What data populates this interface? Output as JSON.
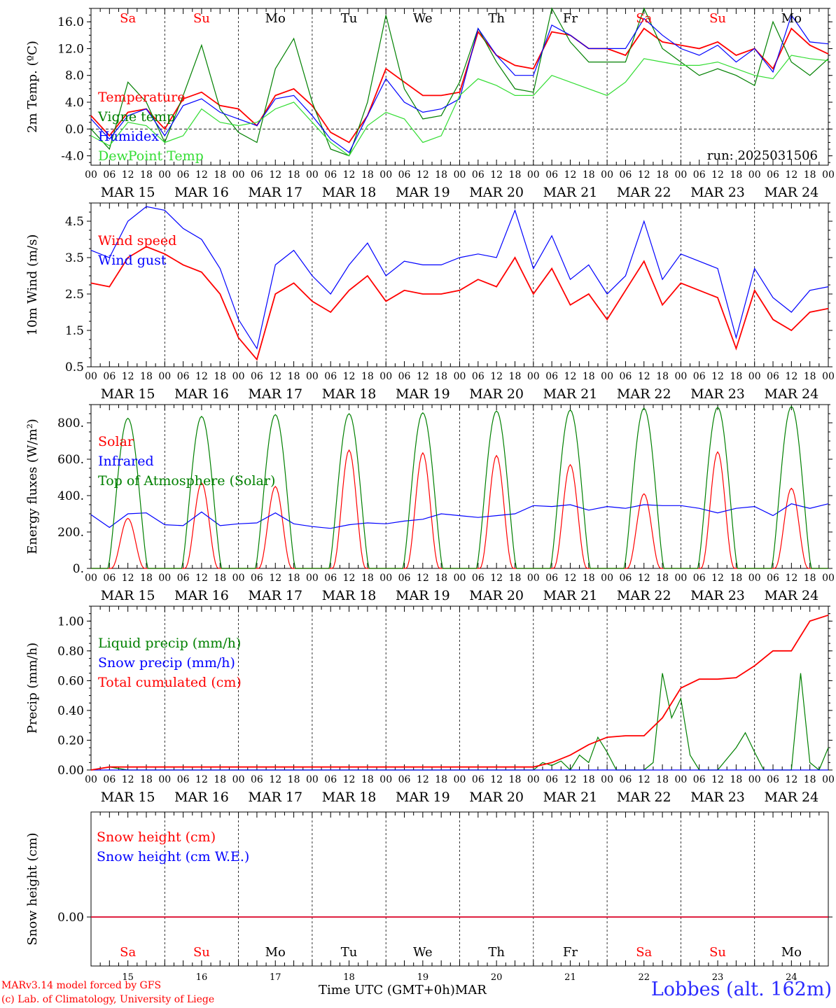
{
  "colors": {
    "temperature": "#ff0000",
    "vigne": "#008000",
    "humidex": "#0000ff",
    "dewpoint": "#33dd33",
    "toa": "#008000",
    "saturday": "#ff0000",
    "sunday": "#ff0000",
    "weekday": "#000000"
  },
  "footer": {
    "line1": "MARv3.14 model forced by GFS",
    "line2": "(c) Lab. of Climatology, University of Liege",
    "axis_title": "Time UTC (GMT+0h)",
    "month": "MAR",
    "station": "Lobbes (alt. 162m)"
  },
  "chart_data": [
    {
      "type": "line",
      "ylabel": "2m Temp. (ºC)",
      "ylim": [
        -5.4,
        18
      ],
      "yticks": [
        "-4.0",
        "0.0",
        "4.0",
        "8.0",
        "12.0",
        "16.0"
      ],
      "ytick_values": [
        -4,
        0,
        4,
        8,
        12,
        16
      ],
      "hour_ticks": [
        "00",
        "06",
        "12",
        "18"
      ],
      "date_labels": [
        "MAR 15",
        "MAR 16",
        "MAR 17",
        "MAR 18",
        "MAR 19",
        "MAR 20",
        "MAR 21",
        "MAR 22",
        "MAR 23",
        "MAR 24"
      ],
      "day_labels": [
        "Sa",
        "Su",
        "Mo",
        "Tu",
        "We",
        "Th",
        "Fr",
        "Sa",
        "Su",
        "Mo"
      ],
      "annotation": "run: 2025031506",
      "zero_line": true,
      "x": [
        0,
        6,
        12,
        18,
        24,
        30,
        36,
        42,
        48,
        54,
        60,
        66,
        72,
        78,
        84,
        90,
        96,
        102,
        108,
        114,
        120,
        126,
        132,
        138,
        144,
        150,
        156,
        162,
        168,
        174,
        180,
        186,
        192,
        198,
        204,
        210,
        216,
        222,
        228,
        234,
        240
      ],
      "series": [
        {
          "name": "Temperature",
          "color": "#ff0000",
          "values": [
            2,
            -1,
            2.5,
            3,
            0,
            4.5,
            5.5,
            3.5,
            3,
            0.5,
            5,
            6,
            3.5,
            -0.5,
            -2,
            2,
            9,
            7,
            5,
            5,
            5.5,
            14.5,
            11,
            9.5,
            9,
            14.5,
            14,
            12,
            12,
            11,
            15,
            13,
            12.5,
            12,
            13,
            11,
            12,
            9,
            15,
            12.5,
            11.2
          ]
        },
        {
          "name": "Vigne temp",
          "color": "#008000",
          "values": [
            0,
            -3,
            7,
            4,
            -2,
            5,
            12.5,
            3,
            -0.5,
            -2,
            9,
            13.5,
            4,
            -3,
            -4,
            4,
            17,
            6,
            1.5,
            2,
            7,
            15,
            10,
            6,
            5.5,
            18,
            13,
            10,
            10,
            10,
            18,
            12,
            10,
            8,
            9,
            8,
            6.5,
            16,
            10,
            8,
            10.5
          ]
        },
        {
          "name": "Humidex",
          "color": "#0000ff",
          "values": [
            1.5,
            -1.5,
            2,
            3,
            -1,
            3.5,
            4.5,
            2.5,
            1.5,
            0.5,
            4.5,
            5,
            2,
            -1.5,
            -3.5,
            2,
            7.5,
            4,
            2.5,
            3,
            4.5,
            15,
            11,
            8,
            8,
            15.5,
            14,
            12,
            12,
            12,
            16.5,
            14,
            12,
            11,
            12.5,
            10,
            12,
            8.5,
            17,
            13,
            12.7
          ]
        },
        {
          "name": "DewPoint Temp",
          "color": "#33dd33",
          "values": [
            -1,
            -2.5,
            1,
            0.5,
            -2,
            -1,
            3,
            1,
            0.5,
            1,
            3,
            4,
            1,
            -2,
            -4,
            0.5,
            2.5,
            1.5,
            -2,
            -1,
            5,
            7.5,
            6.5,
            5,
            5,
            8,
            7,
            6,
            5,
            7,
            10.5,
            10,
            9.5,
            9.5,
            10,
            9,
            8,
            7.5,
            11,
            10.5,
            10.2
          ]
        }
      ],
      "legend": [
        "Temperature",
        "Vigne temp",
        "Humidex",
        "DewPoint Temp"
      ],
      "legend_position": "left"
    },
    {
      "type": "line",
      "ylabel": "10m Wind (m/s)",
      "ylim": [
        0.5,
        5.0
      ],
      "yticks": [
        "0.5",
        "1.5",
        "2.5",
        "3.5",
        "4.5"
      ],
      "ytick_values": [
        0.5,
        1.5,
        2.5,
        3.5,
        4.5
      ],
      "hour_ticks": [
        "00",
        "06",
        "12",
        "18"
      ],
      "date_labels": [
        "MAR 15",
        "MAR 16",
        "MAR 17",
        "MAR 18",
        "MAR 19",
        "MAR 20",
        "MAR 21",
        "MAR 22",
        "MAR 23",
        "MAR 24"
      ],
      "x": [
        0,
        6,
        12,
        18,
        24,
        30,
        36,
        42,
        48,
        54,
        60,
        66,
        72,
        78,
        84,
        90,
        96,
        102,
        108,
        114,
        120,
        126,
        132,
        138,
        144,
        150,
        156,
        162,
        168,
        174,
        180,
        186,
        192,
        198,
        204,
        210,
        216,
        222,
        228,
        234,
        240
      ],
      "series": [
        {
          "name": "Wind speed",
          "color": "#ff0000",
          "values": [
            2.8,
            2.7,
            3.5,
            3.8,
            3.6,
            3.3,
            3.1,
            2.5,
            1.3,
            0.7,
            2.5,
            2.8,
            2.3,
            2.0,
            2.6,
            3.0,
            2.3,
            2.6,
            2.5,
            2.5,
            2.6,
            2.9,
            2.7,
            3.5,
            2.5,
            3.2,
            2.2,
            2.5,
            1.8,
            2.6,
            3.4,
            2.2,
            2.8,
            2.6,
            2.4,
            1.0,
            2.6,
            1.8,
            1.5,
            2.0,
            2.1
          ]
        },
        {
          "name": "Wind gust",
          "color": "#0000ff",
          "values": [
            3.7,
            3.5,
            4.5,
            4.9,
            4.8,
            4.3,
            4.0,
            3.2,
            1.8,
            1.0,
            3.3,
            3.7,
            3.0,
            2.5,
            3.3,
            3.9,
            3.0,
            3.4,
            3.3,
            3.3,
            3.5,
            3.6,
            3.5,
            4.8,
            3.2,
            4.1,
            2.9,
            3.3,
            2.5,
            3.0,
            4.5,
            2.9,
            3.6,
            3.4,
            3.2,
            1.3,
            3.2,
            2.4,
            2.0,
            2.6,
            2.7
          ]
        }
      ],
      "legend": [
        "Wind speed",
        "Wind gust"
      ],
      "legend_position": "left"
    },
    {
      "type": "line",
      "ylabel": "Energy fluxes (W/m²)",
      "ylim": [
        0,
        900
      ],
      "yticks": [
        "0.",
        "200.",
        "400.",
        "600.",
        "800."
      ],
      "ytick_values": [
        0,
        200,
        400,
        600,
        800
      ],
      "hour_ticks": [
        "00",
        "06",
        "12",
        "18"
      ],
      "date_labels": [
        "MAR 15",
        "MAR 16",
        "MAR 17",
        "MAR 18",
        "MAR 19",
        "MAR 20",
        "MAR 21",
        "MAR 22",
        "MAR 23",
        "MAR 24"
      ],
      "series": [
        {
          "name": "Solar",
          "color": "#ff0000",
          "peaks": [
            275,
            470,
            450,
            650,
            635,
            620,
            570,
            410,
            640,
            440
          ]
        },
        {
          "name": "Infrared",
          "color": "#0000ff",
          "x": [
            0,
            6,
            12,
            18,
            24,
            30,
            36,
            42,
            48,
            54,
            60,
            66,
            72,
            78,
            84,
            90,
            96,
            102,
            108,
            114,
            120,
            126,
            132,
            138,
            144,
            150,
            156,
            162,
            168,
            174,
            180,
            186,
            192,
            198,
            204,
            210,
            216,
            222,
            228,
            234,
            240
          ],
          "values": [
            295,
            225,
            300,
            305,
            240,
            235,
            310,
            235,
            245,
            250,
            305,
            245,
            230,
            220,
            240,
            250,
            245,
            260,
            270,
            300,
            290,
            280,
            290,
            300,
            345,
            340,
            350,
            320,
            340,
            330,
            350,
            345,
            345,
            330,
            305,
            330,
            340,
            290,
            355,
            330,
            355
          ]
        },
        {
          "name": "Top of Atmosphere (Solar)",
          "color": "#008000",
          "peaks": [
            825,
            835,
            845,
            850,
            855,
            865,
            870,
            880,
            885,
            890
          ]
        }
      ],
      "legend": [
        "Solar",
        "Infrared",
        "Top of Atmosphere (Solar)"
      ],
      "legend_position": "left"
    },
    {
      "type": "line",
      "ylabel": "Precip (mm/h)",
      "ylim": [
        0,
        1.1
      ],
      "yticks": [
        "0.00",
        "0.20",
        "0.40",
        "0.60",
        "0.80",
        "1.00"
      ],
      "ytick_values": [
        0,
        0.2,
        0.4,
        0.6,
        0.8,
        1.0
      ],
      "hour_ticks": [
        "00",
        "06",
        "12",
        "18"
      ],
      "date_labels": [
        "MAR 15",
        "MAR 16",
        "MAR 17",
        "MAR 18",
        "MAR 19",
        "MAR 20",
        "MAR 21",
        "MAR 22",
        "MAR 23",
        "MAR 24"
      ],
      "series": [
        {
          "name": "Liquid precip (mm/h)",
          "color": "#008000",
          "x": [
            0,
            6,
            9,
            12,
            24,
            144,
            147,
            150,
            153,
            156,
            159,
            162,
            165,
            168,
            171,
            174,
            180,
            183,
            186,
            189,
            192,
            195,
            198,
            204,
            210,
            213,
            216,
            219,
            222,
            228,
            231,
            234,
            237,
            240
          ],
          "values": [
            0,
            0.02,
            0.01,
            0,
            0,
            0,
            0.05,
            0.03,
            0.06,
            0,
            0.1,
            0.05,
            0.22,
            0.12,
            0,
            0,
            0,
            0.05,
            0.65,
            0.35,
            0.48,
            0.1,
            0,
            0,
            0.15,
            0.25,
            0.12,
            0,
            0,
            0,
            0.65,
            0.05,
            0,
            0.15
          ]
        },
        {
          "name": "Snow precip (mm/h)",
          "color": "#0000ff",
          "x": [
            0,
            240
          ],
          "values": [
            0,
            0
          ]
        },
        {
          "name": "Total cumulated (cm)",
          "color": "#ff0000",
          "x": [
            0,
            6,
            144,
            150,
            156,
            162,
            168,
            174,
            180,
            186,
            192,
            198,
            204,
            210,
            216,
            222,
            228,
            231,
            234,
            240
          ],
          "values": [
            0,
            0.02,
            0.02,
            0.05,
            0.1,
            0.17,
            0.22,
            0.23,
            0.23,
            0.35,
            0.55,
            0.61,
            0.61,
            0.62,
            0.7,
            0.8,
            0.8,
            0.9,
            1.0,
            1.04
          ]
        }
      ],
      "legend": [
        "Liquid precip (mm/h)",
        "Snow precip (mm/h)",
        "Total cumulated (cm)"
      ],
      "legend_position": "left"
    },
    {
      "type": "line",
      "ylabel": "Snow height (cm)",
      "yticks": [
        "0.00"
      ],
      "ytick_values": [
        0
      ],
      "day_labels": [
        "Sa",
        "Su",
        "Mo",
        "Tu",
        "We",
        "Th",
        "Fr",
        "Sa",
        "Su",
        "Mo"
      ],
      "date_numbers": [
        "15",
        "16",
        "17",
        "18",
        "19",
        "20",
        "21",
        "22",
        "23",
        "24"
      ],
      "series": [
        {
          "name": "Snow height (cm)",
          "color": "#ff0000",
          "x": [
            0,
            240
          ],
          "values": [
            0,
            0
          ]
        },
        {
          "name": "Snow height (cm W.E.)",
          "color": "#0000ff",
          "x": [
            0,
            240
          ],
          "values": [
            0,
            0
          ]
        }
      ],
      "legend": [
        "Snow height (cm)",
        "Snow height (cm W.E.)"
      ],
      "legend_position": "left"
    }
  ]
}
